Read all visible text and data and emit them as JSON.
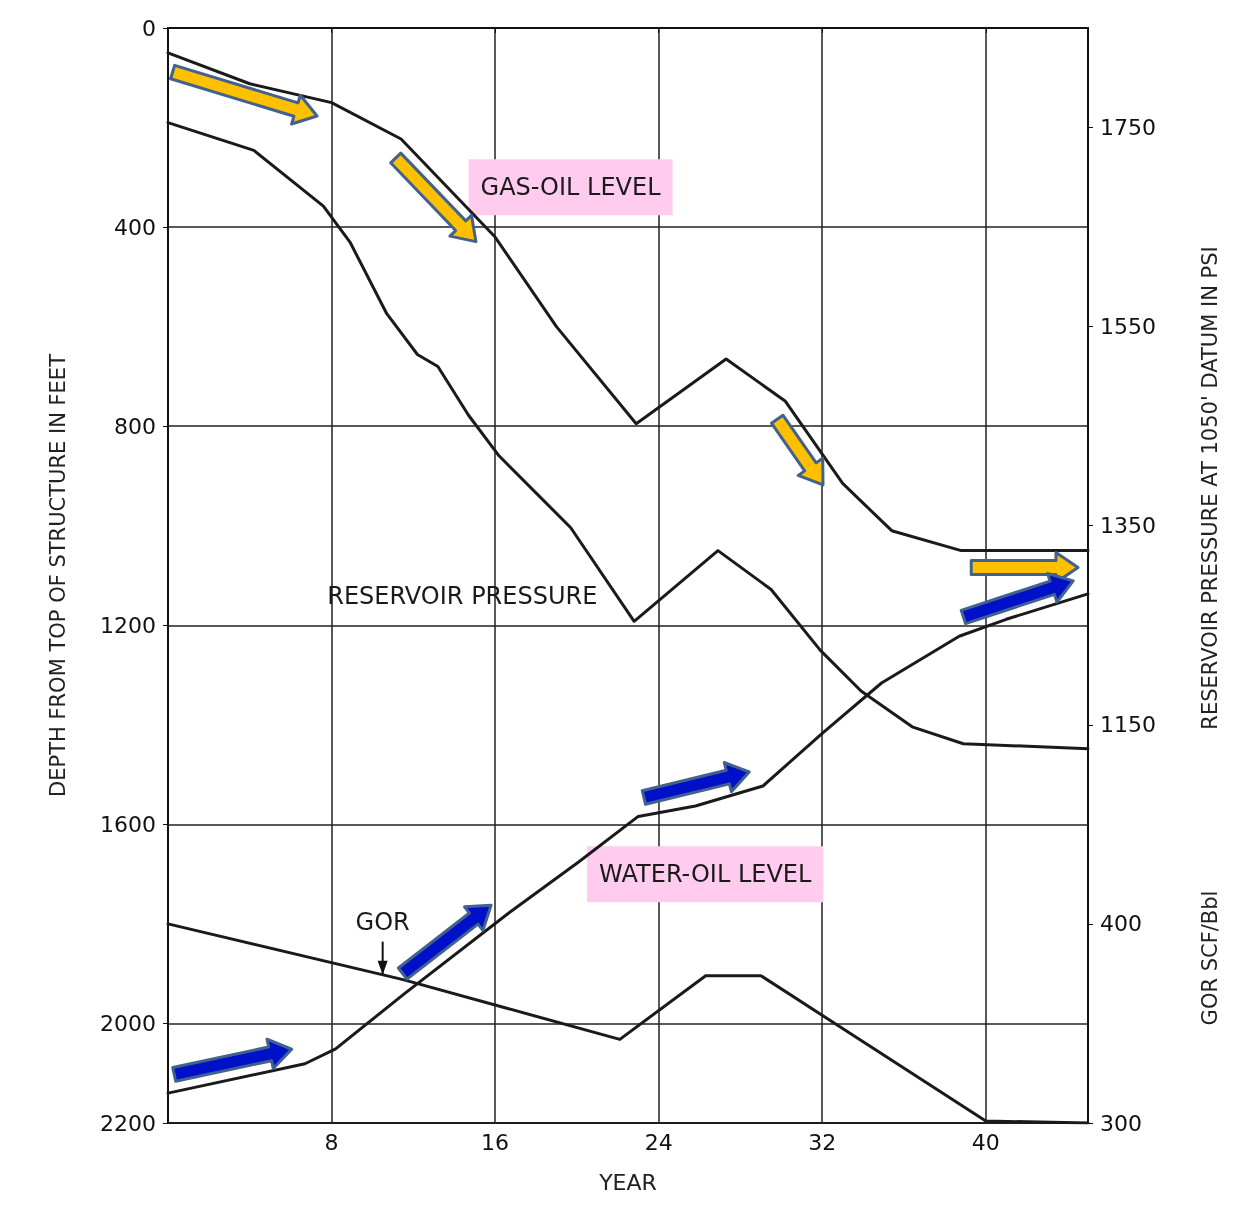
{
  "chart_data": {
    "type": "line",
    "xlabel": "YEAR",
    "ylabel": "DEPTH FROM TOP OF STRUCTURE IN FEET",
    "y2label": "RESERVOIR PRESSURE AT 1050' DATUM IN PSI",
    "y3label": "GOR SCF/Bbl",
    "xlim": [
      0,
      45
    ],
    "xticks": [
      8,
      16,
      24,
      32,
      40
    ],
    "ylim": [
      2200,
      0
    ],
    "yticks": [
      0,
      400,
      800,
      1200,
      1600,
      2000,
      2200
    ],
    "y2lim": [
      750,
      1850
    ],
    "y2ticks": [
      1150,
      1350,
      1550,
      1750
    ],
    "y3lim": [
      300,
      850
    ],
    "y3ticks": [
      300,
      400
    ],
    "grid": true,
    "legend": false,
    "marker": "none",
    "line_style": "solid",
    "series": [
      {
        "name": "GAS-OIL LEVEL",
        "color": "#1a1a1a",
        "x": [
          0,
          4,
          8,
          11.4,
          16,
          19,
          22.9,
          27.3,
          30.2,
          33,
          35.4,
          38.8,
          40.7,
          45
        ],
        "values": [
          50,
          112,
          150,
          223,
          420,
          600,
          795,
          665,
          750,
          915,
          1010,
          1050,
          1050,
          1050
        ]
      },
      {
        "name": "WATER-OIL LEVEL",
        "color": "#1a1a1a",
        "x": [
          0,
          6.7,
          8.2,
          11.6,
          16.7,
          20.1,
          23,
          25.8,
          29.1,
          32,
          34.9,
          38.7,
          41,
          45
        ],
        "values": [
          2140,
          2081,
          2051,
          1939,
          1777,
          1675,
          1584,
          1563,
          1523,
          1417,
          1316,
          1222,
          1188,
          1137
        ]
      },
      {
        "name": "RESERVOIR PRESSURE",
        "color": "#1a1a1a",
        "axis": "y2",
        "x": [
          0,
          4.2,
          7.6,
          8.9,
          10.7,
          12.2,
          13.2,
          14.7,
          16.2,
          19.7,
          22.8,
          26.9,
          29.5,
          31.9,
          33.9,
          36.4,
          38.9,
          45
        ],
        "values": [
          1755,
          1727,
          1671,
          1635,
          1563,
          1522,
          1510,
          1461,
          1420,
          1348,
          1254,
          1325,
          1286,
          1225,
          1184,
          1148,
          1131,
          1126
        ]
      },
      {
        "name": "GOR",
        "color": "#1a1a1a",
        "axis": "y3",
        "x": [
          0,
          11.5,
          22.1,
          26.3,
          29,
          40,
          45
        ],
        "values": [
          400,
          372,
          342,
          374,
          374,
          301,
          300
        ]
      }
    ]
  }
}
